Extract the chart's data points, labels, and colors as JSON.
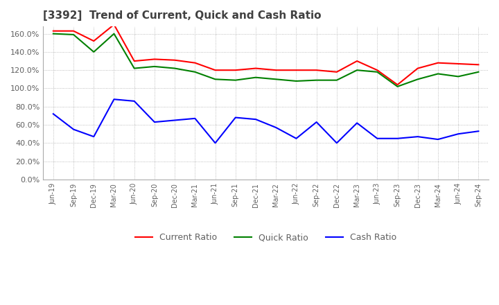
{
  "title": "[3392]  Trend of Current, Quick and Cash Ratio",
  "x_labels": [
    "Jun-19",
    "Sep-19",
    "Dec-19",
    "Mar-20",
    "Jun-20",
    "Sep-20",
    "Dec-20",
    "Mar-21",
    "Jun-21",
    "Sep-21",
    "Dec-21",
    "Mar-22",
    "Jun-22",
    "Sep-22",
    "Dec-22",
    "Mar-23",
    "Jun-23",
    "Sep-23",
    "Dec-23",
    "Mar-24",
    "Jun-24",
    "Sep-24"
  ],
  "current_ratio": [
    163,
    163,
    152,
    170,
    130,
    132,
    131,
    128,
    120,
    120,
    122,
    120,
    120,
    120,
    118,
    130,
    120,
    104,
    122,
    128,
    127,
    126
  ],
  "quick_ratio": [
    160,
    159,
    140,
    160,
    122,
    124,
    122,
    118,
    110,
    109,
    112,
    110,
    108,
    109,
    109,
    120,
    118,
    102,
    110,
    116,
    113,
    118
  ],
  "cash_ratio": [
    72,
    55,
    47,
    88,
    86,
    63,
    65,
    67,
    40,
    68,
    66,
    57,
    45,
    63,
    40,
    62,
    45,
    45,
    47,
    44,
    50,
    53
  ],
  "ylim": [
    0,
    168
  ],
  "yticks": [
    0,
    20,
    40,
    60,
    80,
    100,
    120,
    140,
    160
  ],
  "current_color": "#FF0000",
  "quick_color": "#008000",
  "cash_color": "#0000FF",
  "bg_color": "#FFFFFF",
  "grid_color": "#AAAAAA",
  "title_color": "#404040",
  "label_color": "#606060",
  "title_fontsize": 11,
  "tick_fontsize": 8,
  "line_width": 1.5
}
